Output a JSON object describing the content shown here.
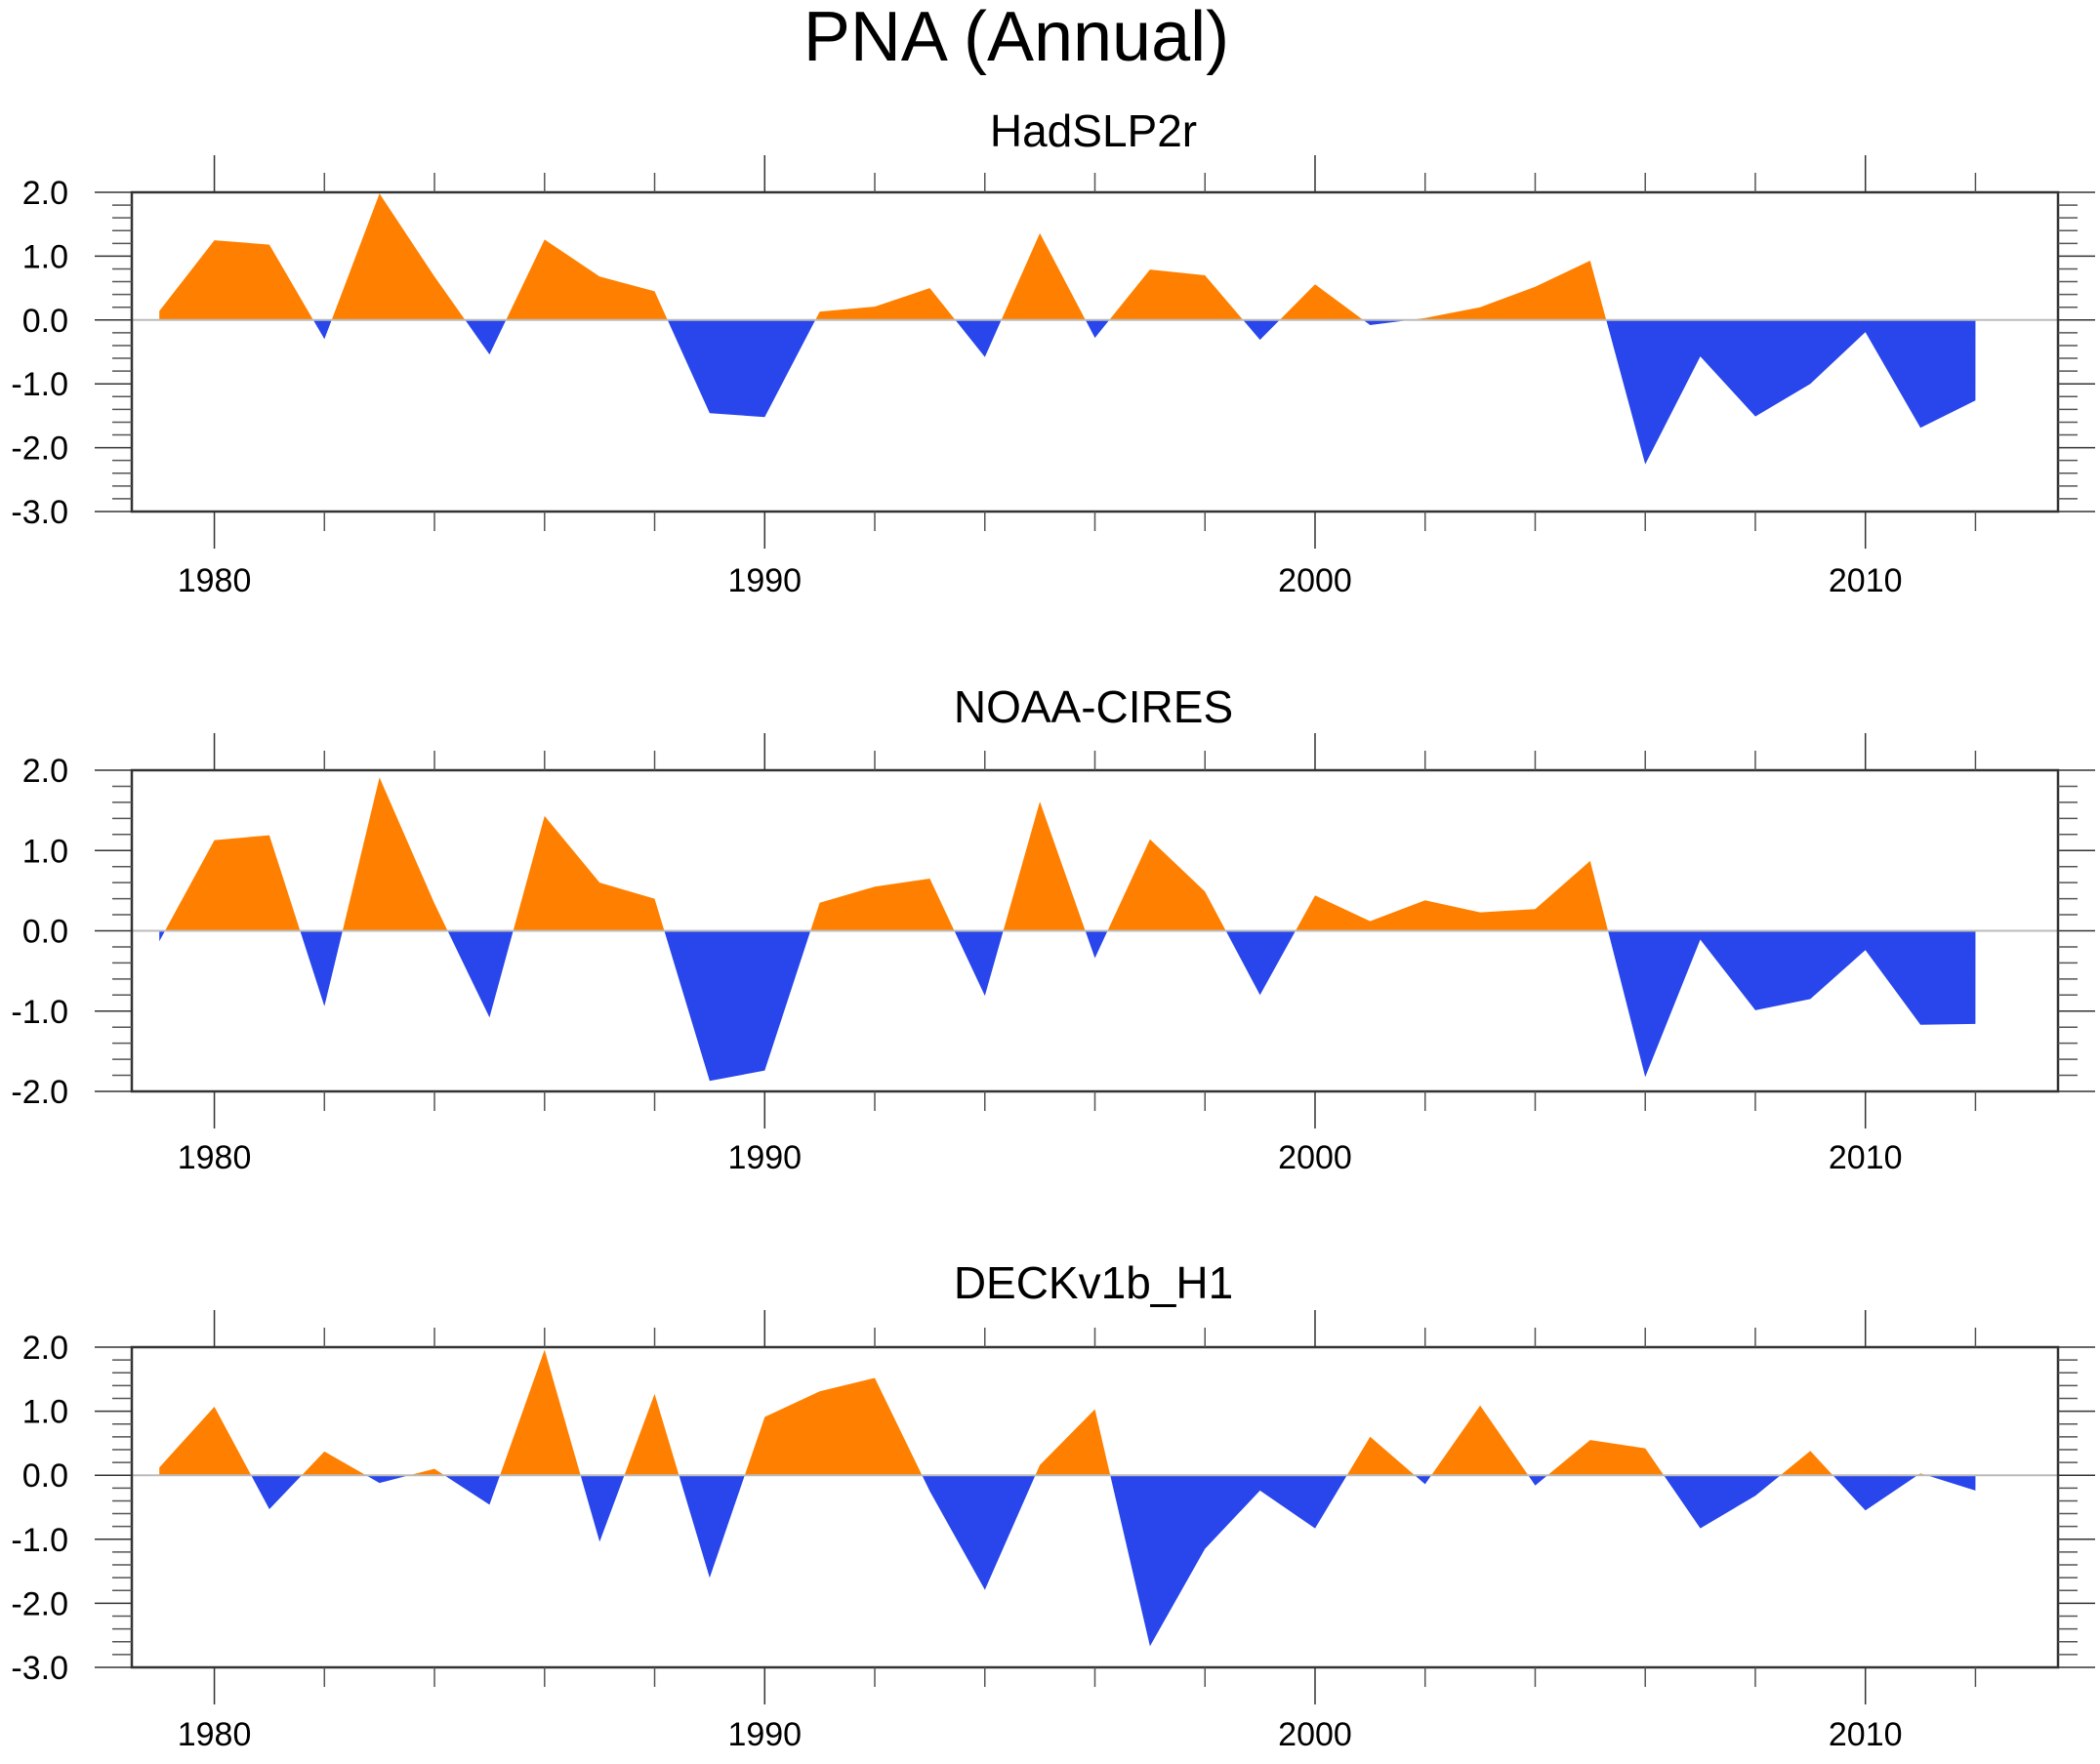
{
  "chart_data": {
    "type": "area",
    "title": "PNA (Annual)",
    "colors": {
      "positive": "#FF8000",
      "negative": "#2846EB",
      "zero_line": "#BBBBBB"
    },
    "xlim": [
      1978.5,
      2013.5
    ],
    "x_major_ticks": [
      1980,
      1990,
      2000,
      2010
    ],
    "x_tick_labels": [
      "1980",
      "1990",
      "2000",
      "2010"
    ],
    "x_minor_step": 2,
    "years": [
      1979,
      1980,
      1981,
      1982,
      1983,
      1984,
      1985,
      1986,
      1987,
      1988,
      1989,
      1990,
      1991,
      1992,
      1993,
      1994,
      1995,
      1996,
      1997,
      1998,
      1999,
      2000,
      2001,
      2002,
      2003,
      2004,
      2005,
      2006,
      2007,
      2008,
      2009,
      2010,
      2011,
      2012
    ],
    "panels": [
      {
        "title": "HadSLP2r",
        "ylim": [
          -3.0,
          2.0
        ],
        "y_ticks": [
          2.0,
          1.0,
          0.0,
          -1.0,
          -2.0,
          -3.0
        ],
        "y_tick_labels": [
          "2.0",
          "1.0",
          "0.0",
          "-1.0",
          "-2.0",
          "-3.0"
        ],
        "values": [
          0.14,
          1.25,
          1.18,
          -0.3,
          1.98,
          0.68,
          -0.54,
          1.26,
          0.68,
          0.45,
          -1.46,
          -1.52,
          0.13,
          0.21,
          0.5,
          -0.58,
          1.36,
          -0.28,
          0.79,
          0.7,
          -0.31,
          0.56,
          -0.08,
          0.03,
          0.2,
          0.52,
          0.93,
          -2.26,
          -0.57,
          -1.51,
          -1.0,
          -0.19,
          -1.69,
          -1.26
        ]
      },
      {
        "title": "NOAA-CIRES",
        "ylim": [
          -2.0,
          2.0
        ],
        "y_ticks": [
          2.0,
          1.0,
          0.0,
          -1.0,
          -2.0
        ],
        "y_tick_labels": [
          "2.0",
          "1.0",
          "0.0",
          "-1.0",
          "-2.0"
        ],
        "values": [
          -0.13,
          1.13,
          1.19,
          -0.94,
          1.91,
          0.34,
          -1.08,
          1.43,
          0.6,
          0.4,
          -1.87,
          -1.74,
          0.35,
          0.55,
          0.65,
          -0.81,
          1.61,
          -0.34,
          1.14,
          0.49,
          -0.8,
          0.44,
          0.12,
          0.38,
          0.23,
          0.27,
          0.87,
          -1.82,
          -0.11,
          -0.99,
          -0.85,
          -0.24,
          -1.17,
          -1.16
        ]
      },
      {
        "title": "DECKv1b_H1",
        "ylim": [
          -3.0,
          2.0
        ],
        "y_ticks": [
          2.0,
          1.0,
          0.0,
          -1.0,
          -2.0,
          -3.0
        ],
        "y_tick_labels": [
          "2.0",
          "1.0",
          "0.0",
          "-1.0",
          "-2.0",
          "-3.0"
        ],
        "values": [
          0.12,
          1.07,
          -0.53,
          0.37,
          -0.12,
          0.1,
          -0.46,
          1.96,
          -1.04,
          1.27,
          -1.6,
          0.91,
          1.31,
          1.52,
          -0.25,
          -1.79,
          0.16,
          1.03,
          -2.67,
          -1.15,
          -0.24,
          -0.83,
          0.6,
          -0.14,
          1.09,
          -0.16,
          0.55,
          0.42,
          -0.83,
          -0.32,
          0.38,
          -0.55,
          0.03,
          -0.24
        ]
      }
    ]
  }
}
